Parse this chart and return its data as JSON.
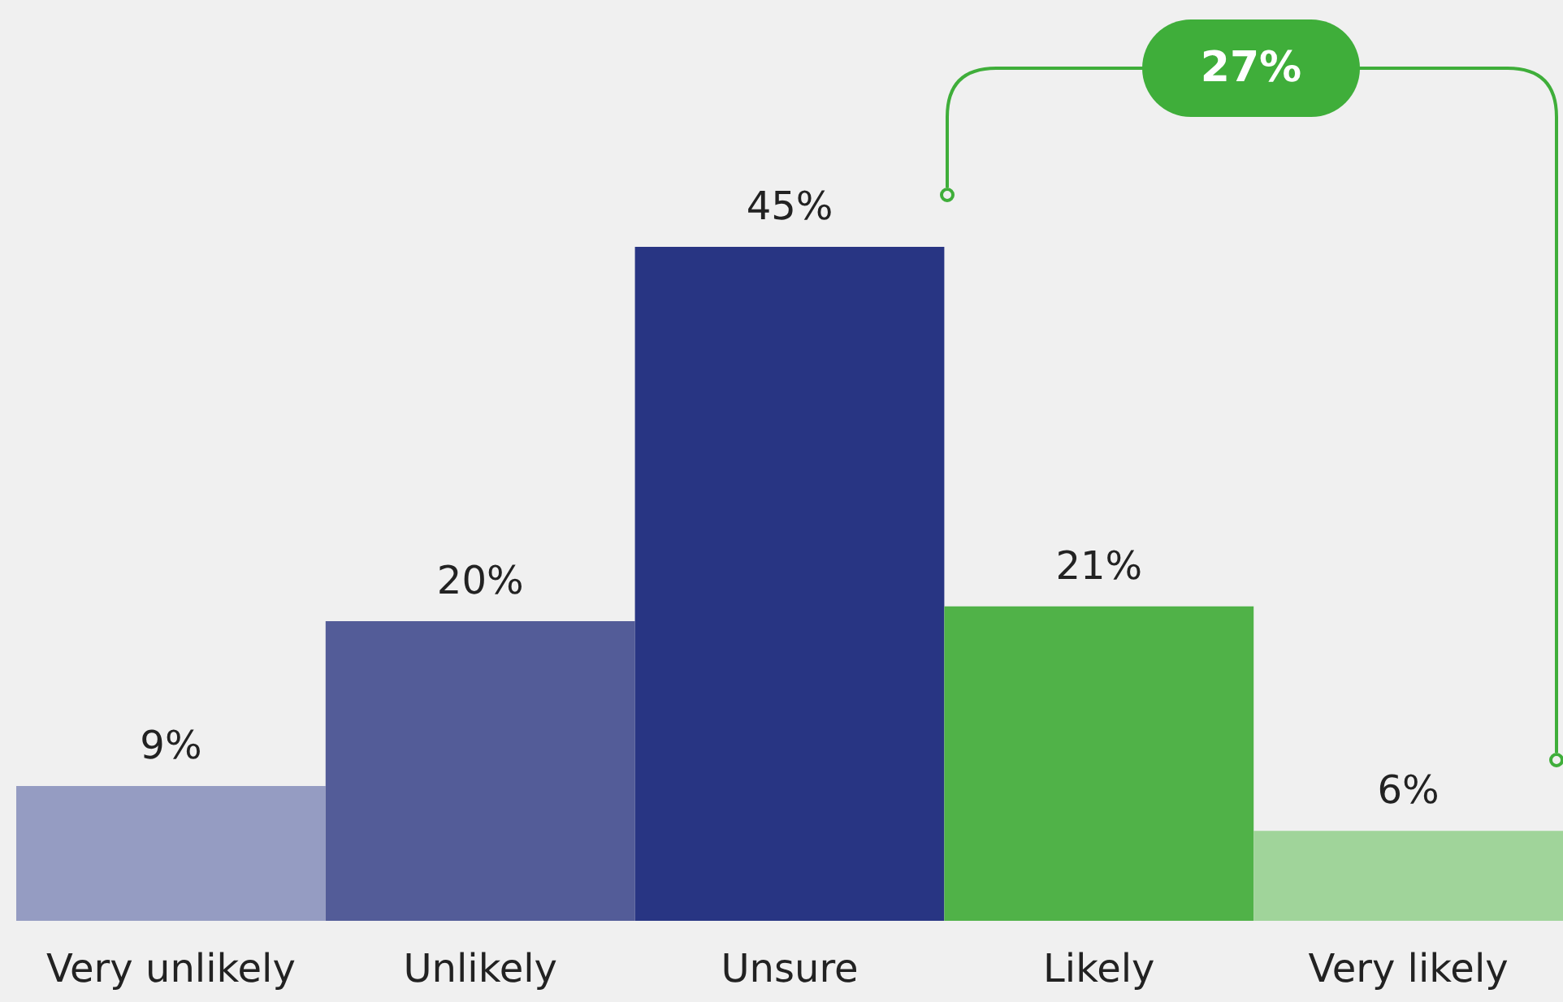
{
  "chart_data": {
    "type": "bar",
    "categories": [
      "Very unlikely",
      "Unlikely",
      "Unsure",
      "Likely",
      "Very likely"
    ],
    "values": [
      9,
      20,
      45,
      21,
      6
    ],
    "colors": [
      "#959cc2",
      "#535c98",
      "#283583",
      "#50b248",
      "#a0d49a"
    ],
    "value_labels": [
      "9%",
      "20%",
      "45%",
      "21%",
      "6%"
    ],
    "annotations": [
      "27%"
    ]
  }
}
